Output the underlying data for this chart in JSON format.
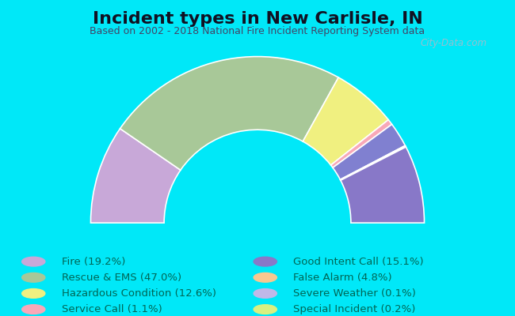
{
  "title": "Incident types in New Carlisle, IN",
  "subtitle": "Based on 2002 - 2018 National Fire Incident Reporting System data",
  "background_color": "#00e8f8",
  "chart_bg_left": "#d8ece0",
  "chart_bg_right": "#eaf0f8",
  "watermark": "City-Data.com",
  "segments": [
    {
      "label": "Fire",
      "pct": 19.2,
      "color": "#c8a8d8"
    },
    {
      "label": "Rescue & EMS",
      "pct": 47.0,
      "color": "#a8c898"
    },
    {
      "label": "Hazardous Condition",
      "pct": 12.6,
      "color": "#f0f080"
    },
    {
      "label": "Service Call",
      "pct": 1.1,
      "color": "#f8a8b8"
    },
    {
      "label": "False Alarm",
      "pct": 4.8,
      "color": "#8080d0"
    },
    {
      "label": "Special Incident",
      "pct": 0.2,
      "color": "#f8d0a0"
    },
    {
      "label": "Severe Weather",
      "pct": 0.1,
      "color": "#c0b8e8"
    },
    {
      "label": "Good Intent Call",
      "pct": 15.1,
      "color": "#8878c8"
    }
  ],
  "legend_order": [
    {
      "label": "Fire",
      "pct": 19.2,
      "color": "#c8a8d8"
    },
    {
      "label": "Rescue & EMS",
      "pct": 47.0,
      "color": "#a8c898"
    },
    {
      "label": "Hazardous Condition",
      "pct": 12.6,
      "color": "#f0f080"
    },
    {
      "label": "Service Call",
      "pct": 1.1,
      "color": "#f8a8b8"
    },
    {
      "label": "Good Intent Call",
      "pct": 15.1,
      "color": "#8878c8"
    },
    {
      "label": "False Alarm",
      "pct": 4.8,
      "color": "#f8c890"
    },
    {
      "label": "Severe Weather",
      "pct": 0.1,
      "color": "#c0b8e8"
    },
    {
      "label": "Special Incident",
      "pct": 0.2,
      "color": "#d8f080"
    }
  ],
  "title_fontsize": 16,
  "subtitle_fontsize": 9,
  "legend_fontsize": 9.5
}
